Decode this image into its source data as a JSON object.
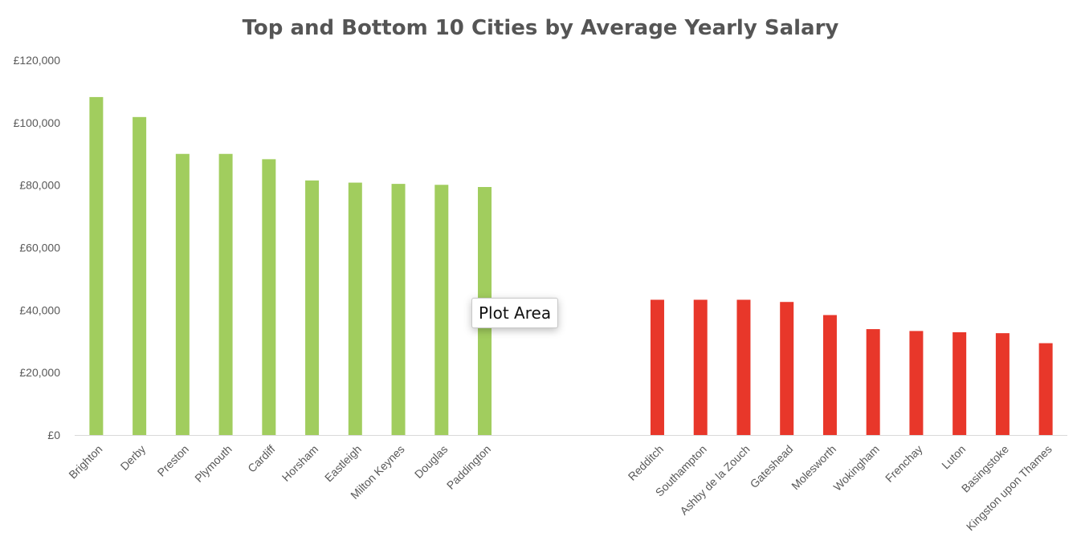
{
  "chart_data": {
    "type": "bar",
    "title": "Top and Bottom 10 Cities by Average Yearly Salary",
    "xlabel": "",
    "ylabel": "",
    "ylim": [
      0,
      120000
    ],
    "y_ticks": [
      0,
      20000,
      40000,
      60000,
      80000,
      100000,
      120000
    ],
    "y_tick_labels": [
      "£0",
      "£20,000",
      "£40,000",
      "£60,000",
      "£80,000",
      "£100,000",
      "£120,000"
    ],
    "grid": false,
    "legend": "none",
    "categories": [
      "Brighton",
      "Derby",
      "Preston",
      "Plymouth",
      "Cardiff",
      "Horsham",
      "Eastleigh",
      "Milton Keynes",
      "Douglas",
      "Paddington",
      "",
      "",
      "",
      "Redditch",
      "Southampton",
      "Ashby de la Zouch",
      "Gateshead",
      "Molesworth",
      "Wokingham",
      "Frenchay",
      "Luton",
      "Basingstoke",
      "Kingston upon Thames"
    ],
    "series": [
      {
        "values": [
          108200,
          101800,
          90000,
          90000,
          88300,
          81500,
          80800,
          80400,
          80100,
          79400,
          null,
          null,
          null,
          null,
          null,
          null,
          null,
          null,
          null,
          null,
          null,
          null,
          null
        ],
        "color": "#a1cd5e"
      },
      {
        "values": [
          null,
          null,
          null,
          null,
          null,
          null,
          null,
          null,
          null,
          null,
          null,
          null,
          null,
          43300,
          43300,
          43300,
          42600,
          38400,
          33900,
          33300,
          32900,
          32600,
          29400
        ],
        "color": "#e8372a"
      }
    ]
  },
  "tooltip": {
    "text": "Plot Area"
  },
  "colors": {
    "title": "#555555",
    "axis_text": "#595959",
    "axis_line": "#d9d9d9",
    "top_bars": "#a1cd5e",
    "bottom_bars": "#e8372a"
  }
}
